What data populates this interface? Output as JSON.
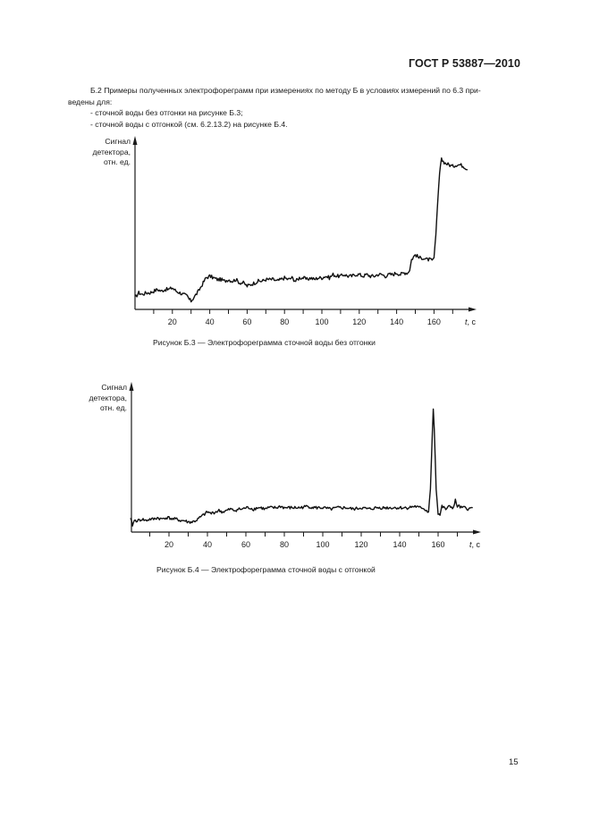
{
  "header": {
    "doc_number": "ГОСТ Р 53887—2010"
  },
  "intro": {
    "line1": "Б.2 Примеры полученных электрофореграмм при измерениях по методу Б в условиях измерений по 6.3 при-",
    "line2": "ведены для:",
    "items": [
      "- сточной воды без отгонки на рисунке Б.3;",
      "- сточной воды с отгонкой (см. 6.2.13.2) на рисунке Б.4."
    ]
  },
  "figures": [
    {
      "ylabel": [
        "Сигнал",
        "детектора,",
        "отн. ед."
      ],
      "xlabel": "t, с",
      "caption": "Рисунок Б.3 — Электрофореграмма сточной воды без отгонки"
    },
    {
      "ylabel": [
        "Сигнал",
        "детектора,",
        "отн. ед."
      ],
      "xlabel": "t, с",
      "caption": "Рисунок Б.4 — Электрофореграмма сточной воды с отгонкой"
    }
  ],
  "page_number": "15",
  "chart_data": [
    {
      "type": "line",
      "title": "Рисунок Б.3 — Электрофореграмма сточной воды без отгонки",
      "xlabel": "t, с",
      "ylabel": "Сигнал детектора, отн. ед.",
      "xlim": [
        0,
        180
      ],
      "ylim": [
        0,
        100
      ],
      "xticks": [
        10,
        20,
        30,
        40,
        50,
        60,
        70,
        80,
        90,
        100,
        110,
        120,
        130,
        140,
        150,
        160,
        170
      ],
      "xtick_labels": [
        "20",
        "40",
        "60",
        "80",
        "100",
        "120",
        "140",
        "160"
      ],
      "grid": false,
      "series": [
        {
          "name": "сточная вода без отгонки",
          "x": [
            0,
            2,
            4,
            6,
            8,
            10,
            12,
            14,
            16,
            18,
            20,
            22,
            24,
            26,
            28,
            29,
            30,
            32,
            34,
            36,
            38,
            40,
            42,
            44,
            46,
            48,
            50,
            52,
            54,
            56,
            58,
            60,
            62,
            64,
            66,
            68,
            70,
            72,
            74,
            76,
            78,
            80,
            82,
            84,
            86,
            88,
            90,
            92,
            94,
            96,
            98,
            100,
            102,
            104,
            106,
            108,
            110,
            112,
            114,
            116,
            118,
            120,
            122,
            124,
            126,
            128,
            130,
            132,
            134,
            136,
            138,
            140,
            142,
            144,
            146,
            147,
            148,
            150,
            152,
            154,
            156,
            158,
            159,
            160,
            161,
            162,
            163,
            164,
            166,
            168,
            170,
            172,
            174,
            176,
            178
          ],
          "values": [
            7,
            10,
            9,
            10,
            10,
            11,
            12,
            11,
            12,
            12,
            13,
            11,
            10,
            9,
            8,
            6,
            5,
            8,
            11,
            15,
            19,
            20,
            19,
            18,
            18,
            17,
            18,
            17,
            18,
            16,
            16,
            14,
            15,
            16,
            17,
            17,
            18,
            18,
            18,
            17,
            18,
            19,
            18,
            19,
            17,
            19,
            19,
            18,
            19,
            18,
            19,
            19,
            20,
            19,
            21,
            20,
            20,
            21,
            20,
            20,
            21,
            21,
            20,
            21,
            20,
            20,
            21,
            21,
            20,
            21,
            21,
            22,
            21,
            22,
            22,
            24,
            30,
            33,
            31,
            31,
            30,
            30,
            29,
            31,
            45,
            65,
            82,
            90,
            88,
            87,
            86,
            87,
            87,
            86,
            84
          ]
        }
      ]
    },
    {
      "type": "line",
      "title": "Рисунок Б.4 — Электрофореграмма сточной воды с отгонкой",
      "xlabel": "t, с",
      "ylabel": "Сигнал детектора, отн. ед.",
      "xlim": [
        0,
        180
      ],
      "ylim": [
        0,
        100
      ],
      "xticks": [
        10,
        20,
        30,
        40,
        50,
        60,
        70,
        80,
        90,
        100,
        110,
        120,
        130,
        140,
        150,
        160,
        170
      ],
      "xtick_labels": [
        "20",
        "40",
        "60",
        "80",
        "100",
        "120",
        "140",
        "160"
      ],
      "grid": false,
      "series": [
        {
          "name": "сточная вода с отгонкой",
          "x": [
            0,
            1,
            2,
            4,
            6,
            8,
            10,
            12,
            14,
            16,
            18,
            20,
            22,
            24,
            26,
            28,
            30,
            32,
            34,
            36,
            38,
            40,
            42,
            44,
            46,
            48,
            50,
            52,
            54,
            56,
            58,
            60,
            62,
            64,
            66,
            68,
            70,
            72,
            74,
            76,
            78,
            80,
            84,
            88,
            92,
            96,
            100,
            104,
            108,
            112,
            116,
            120,
            124,
            128,
            132,
            136,
            140,
            144,
            148,
            150,
            152,
            154,
            155,
            156,
            157,
            157.5,
            158,
            159,
            160,
            161,
            162,
            164,
            166,
            168,
            169,
            170,
            171,
            172,
            174,
            176,
            178
          ],
          "values": [
            9,
            5,
            8,
            8,
            9,
            8,
            9,
            9,
            10,
            9,
            10,
            10,
            9,
            9,
            8,
            8,
            7,
            7,
            8,
            10,
            12,
            14,
            13,
            14,
            15,
            14,
            15,
            16,
            15,
            16,
            16,
            17,
            17,
            16,
            17,
            17,
            16,
            17,
            17,
            17,
            18,
            17,
            17,
            17,
            18,
            17,
            17,
            16,
            17,
            17,
            16,
            17,
            16,
            17,
            17,
            17,
            17,
            17,
            18,
            17,
            17,
            15,
            14,
            30,
            70,
            86,
            72,
            30,
            13,
            12,
            18,
            16,
            18,
            17,
            22,
            18,
            18,
            17,
            17,
            16,
            17
          ]
        }
      ]
    }
  ]
}
